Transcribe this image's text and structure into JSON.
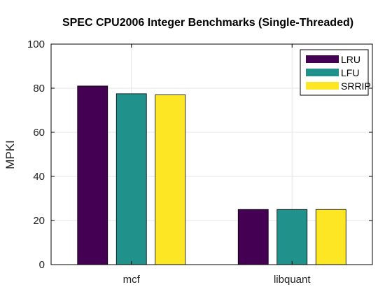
{
  "chart_data": {
    "type": "bar",
    "title": "SPEC CPU2006 Integer Benchmarks (Single-Threaded)",
    "xlabel": "",
    "ylabel": "MPKI",
    "categories": [
      "mcf",
      "libquant"
    ],
    "series": [
      {
        "name": "LRU",
        "values": [
          81,
          25
        ],
        "color": "#440154"
      },
      {
        "name": "LFU",
        "values": [
          77.5,
          25
        ],
        "color": "#21918c"
      },
      {
        "name": "SRRIP",
        "values": [
          77,
          25
        ],
        "color": "#fde725"
      }
    ],
    "ylim": [
      0,
      100
    ],
    "yticks": [
      0,
      20,
      40,
      60,
      80,
      100
    ],
    "grid": true,
    "legend_position": "top-right"
  }
}
